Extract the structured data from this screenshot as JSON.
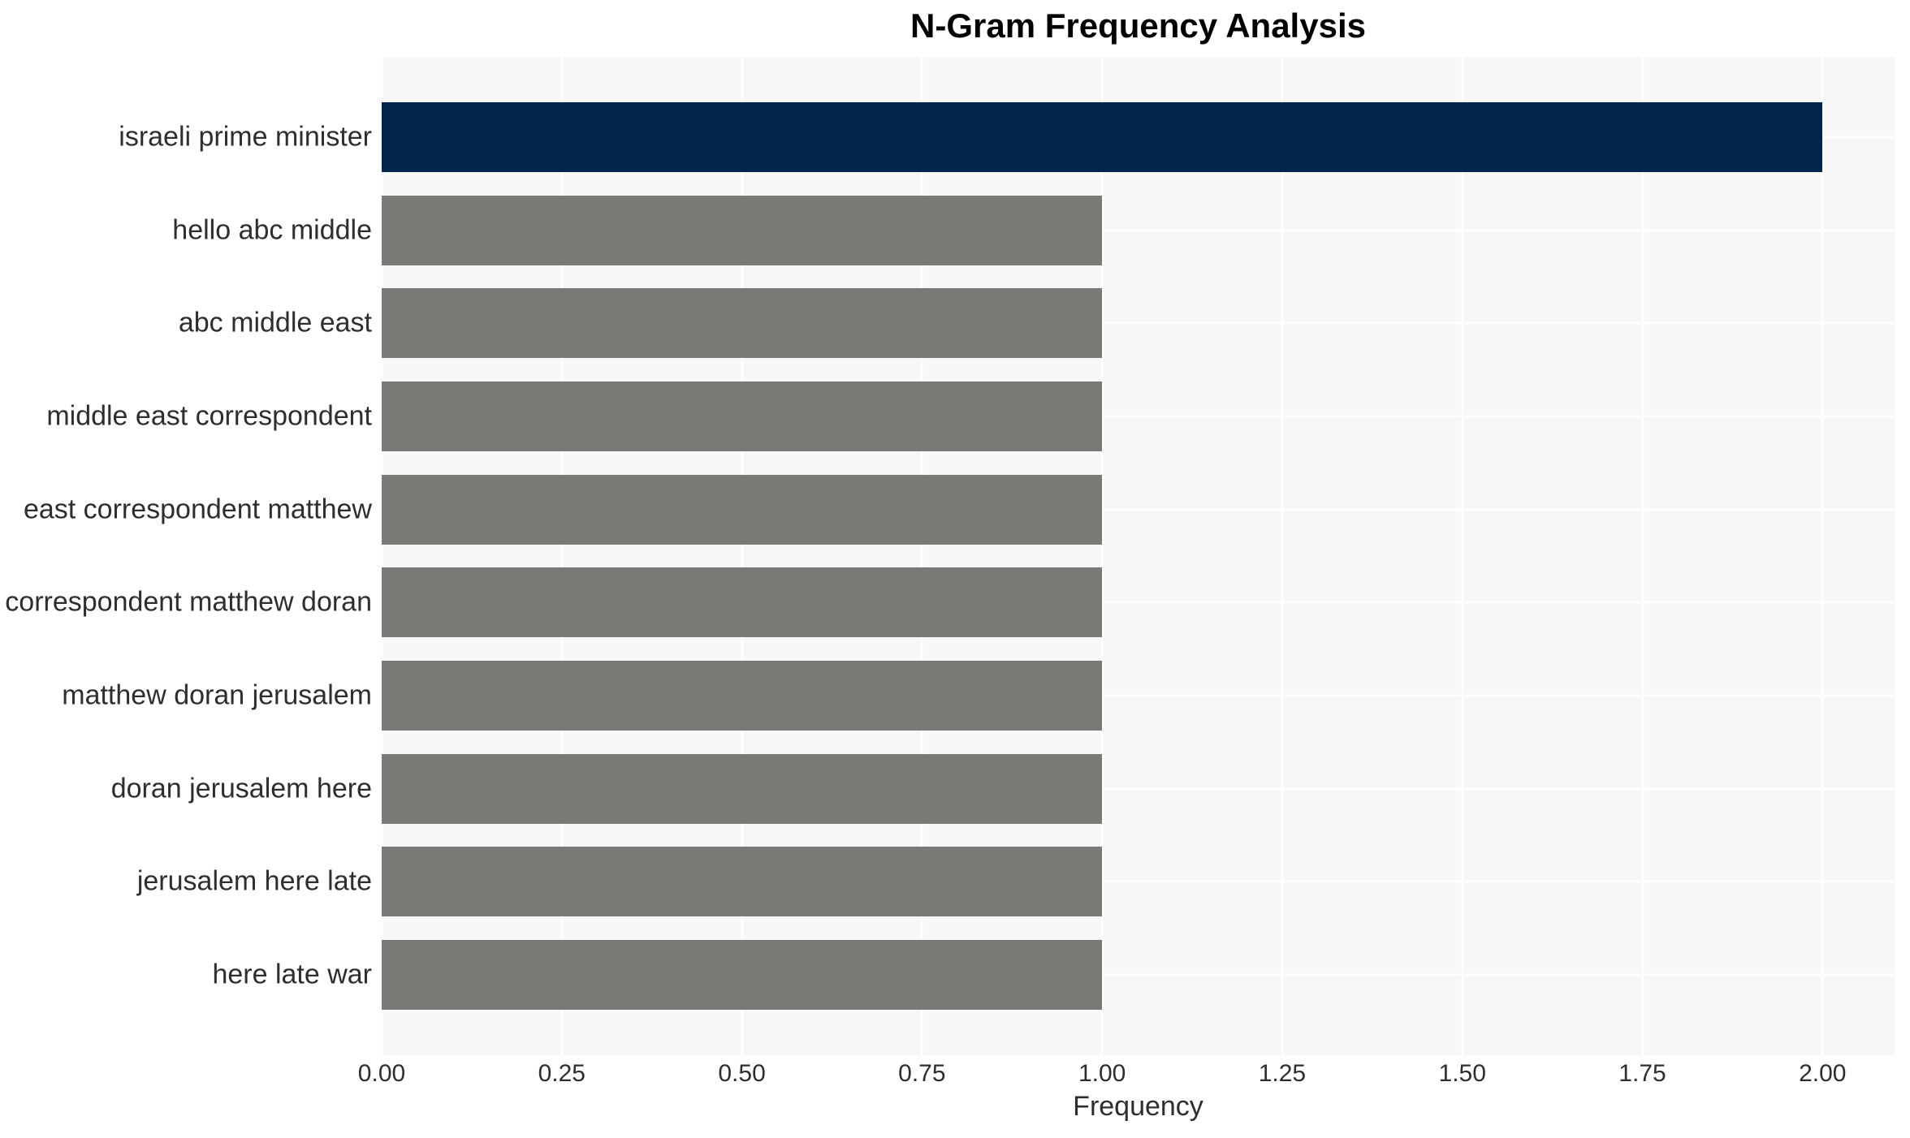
{
  "title": "N-Gram Frequency Analysis",
  "chart_data": {
    "type": "bar",
    "orientation": "horizontal",
    "title": "N-Gram Frequency Analysis",
    "xlabel": "Frequency",
    "ylabel": "",
    "categories": [
      "israeli prime minister",
      "hello abc middle",
      "abc middle east",
      "middle east correspondent",
      "east correspondent matthew",
      "correspondent matthew doran",
      "matthew doran jerusalem",
      "doran jerusalem here",
      "jerusalem here late",
      "here late war"
    ],
    "values": [
      2,
      1,
      1,
      1,
      1,
      1,
      1,
      1,
      1,
      1
    ],
    "bar_colors": [
      "#02254e",
      "#7a7976",
      "#7a7976",
      "#7a7976",
      "#7a7976",
      "#7a7976",
      "#7a7976",
      "#7a7976",
      "#7a7976",
      "#7a7976"
    ],
    "xlim": [
      0,
      2.1
    ],
    "xticks": [
      0,
      0.25,
      0.5,
      0.75,
      1.0,
      1.25,
      1.5,
      1.75,
      2.0
    ],
    "xtick_labels": [
      "0.00",
      "0.25",
      "0.50",
      "0.75",
      "1.00",
      "1.25",
      "1.50",
      "1.75",
      "2.00"
    ],
    "grid": true,
    "legend": "none",
    "colors": {
      "highlight_bar": "#02254e",
      "default_bar": "#7a7976",
      "plot_background": "#f7f7f7",
      "gridline": "#ffffff",
      "page_background": "#ffffff",
      "title_text": "#000000",
      "tick_text": "#2e2e2e"
    }
  }
}
